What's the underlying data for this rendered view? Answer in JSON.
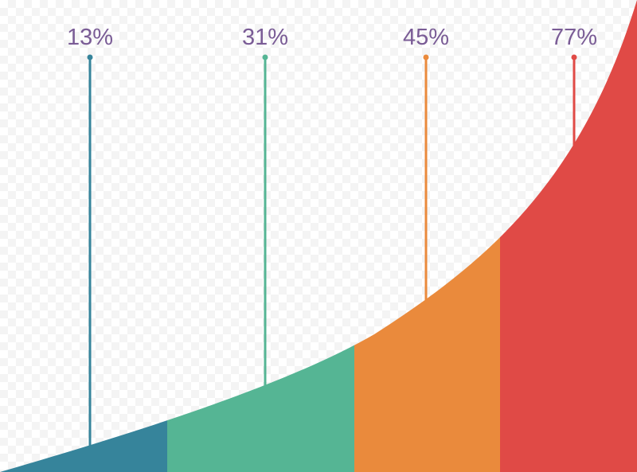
{
  "chart_data": {
    "type": "area",
    "segments": [
      {
        "label": "13%",
        "value": 13,
        "color": "#36849b"
      },
      {
        "label": "31%",
        "value": 31,
        "color": "#55b594"
      },
      {
        "label": "45%",
        "value": 45,
        "color": "#ea8a3c"
      },
      {
        "label": "77%",
        "value": 77,
        "color": "#e04a46"
      }
    ],
    "label_color": "#7a5c96",
    "grid": false,
    "legend": "none"
  }
}
